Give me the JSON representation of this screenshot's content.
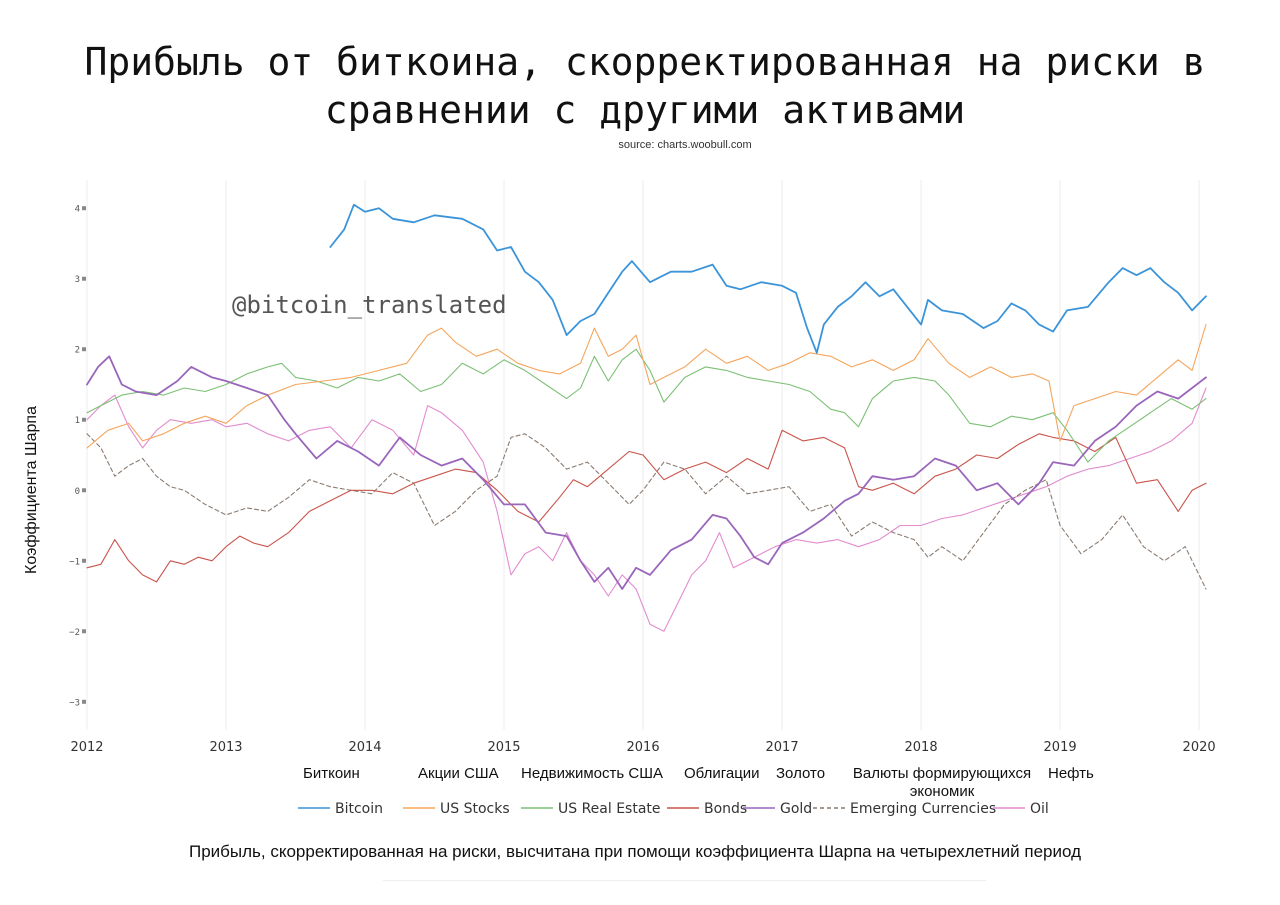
{
  "title": "Прибыль от биткоина, скорректированная на риски в сравнении с другими активами",
  "source": "source: charts.woobull.com",
  "watermark": "@bitcoin_translated",
  "footnote": "Прибыль, скорректированная на риски, высчитана при помощи коэффициента Шарпа на четырехлетний период",
  "russian_labels": [
    "Биткоин",
    "Акции США",
    "Недвижимость США",
    "Облигации",
    "Золото",
    "Валюты формирующихся экономик",
    "Нефть"
  ],
  "chart_data": {
    "type": "line",
    "title": "Прибыль от биткоина, скорректированная на риски в сравнении с другими активами",
    "xlabel": "",
    "ylabel": "Коэффициента Шарпа",
    "xlim": [
      2012,
      2020.1
    ],
    "ylim": [
      -3.4,
      4.4
    ],
    "x_ticks": [
      "2012",
      "2013",
      "2014",
      "2015",
      "2016",
      "2017",
      "2018",
      "2019",
      "2020"
    ],
    "y_ticks": [
      "4",
      "3",
      "2",
      "1",
      "0",
      "−1",
      "−2",
      "−3"
    ],
    "grid": "vertical",
    "legend": "bottom",
    "series": [
      {
        "name": "Bitcoin",
        "color": "#3b94d9",
        "dash": false,
        "width": 1.8,
        "x": [
          2013.75,
          2013.85,
          2013.92,
          2014.0,
          2014.1,
          2014.2,
          2014.35,
          2014.5,
          2014.7,
          2014.85,
          2014.95,
          2015.05,
          2015.15,
          2015.25,
          2015.35,
          2015.45,
          2015.55,
          2015.65,
          2015.75,
          2015.85,
          2015.92,
          2016.05,
          2016.2,
          2016.35,
          2016.5,
          2016.6,
          2016.7,
          2016.85,
          2017.0,
          2017.1,
          2017.18,
          2017.25,
          2017.3,
          2017.4,
          2017.5,
          2017.6,
          2017.7,
          2017.8,
          2017.9,
          2018.0,
          2018.05,
          2018.15,
          2018.3,
          2018.45,
          2018.55,
          2018.65,
          2018.75,
          2018.85,
          2018.95,
          2019.05,
          2019.2,
          2019.35,
          2019.45,
          2019.55,
          2019.65,
          2019.75,
          2019.85,
          2019.95,
          2020.05
        ],
        "y": [
          3.45,
          3.7,
          4.05,
          3.95,
          4.0,
          3.85,
          3.8,
          3.9,
          3.85,
          3.7,
          3.4,
          3.45,
          3.1,
          2.95,
          2.7,
          2.2,
          2.4,
          2.5,
          2.8,
          3.1,
          3.25,
          2.95,
          3.1,
          3.1,
          3.2,
          2.9,
          2.85,
          2.95,
          2.9,
          2.8,
          2.3,
          1.95,
          2.35,
          2.6,
          2.75,
          2.95,
          2.75,
          2.85,
          2.6,
          2.35,
          2.7,
          2.55,
          2.5,
          2.3,
          2.4,
          2.65,
          2.55,
          2.35,
          2.25,
          2.55,
          2.6,
          2.95,
          3.15,
          3.05,
          3.15,
          2.95,
          2.8,
          2.55,
          2.75
        ]
      },
      {
        "name": "US Stocks",
        "color": "#f5a55c",
        "dash": false,
        "width": 1.1,
        "x": [
          2012.0,
          2012.15,
          2012.3,
          2012.4,
          2012.55,
          2012.7,
          2012.85,
          2013.0,
          2013.15,
          2013.3,
          2013.5,
          2013.7,
          2013.9,
          2014.1,
          2014.3,
          2014.45,
          2014.55,
          2014.65,
          2014.8,
          2014.95,
          2015.1,
          2015.25,
          2015.4,
          2015.55,
          2015.65,
          2015.75,
          2015.85,
          2015.95,
          2016.05,
          2016.15,
          2016.3,
          2016.45,
          2016.6,
          2016.75,
          2016.9,
          2017.05,
          2017.2,
          2017.35,
          2017.5,
          2017.65,
          2017.8,
          2017.95,
          2018.05,
          2018.2,
          2018.35,
          2018.5,
          2018.65,
          2018.8,
          2018.92,
          2019.0,
          2019.1,
          2019.25,
          2019.4,
          2019.55,
          2019.7,
          2019.85,
          2019.95,
          2020.05
        ],
        "y": [
          0.6,
          0.85,
          0.95,
          0.7,
          0.8,
          0.95,
          1.05,
          0.95,
          1.2,
          1.35,
          1.5,
          1.55,
          1.6,
          1.7,
          1.8,
          2.2,
          2.3,
          2.1,
          1.9,
          2.0,
          1.8,
          1.7,
          1.65,
          1.8,
          2.3,
          1.9,
          2.0,
          2.2,
          1.5,
          1.6,
          1.75,
          2.0,
          1.8,
          1.9,
          1.7,
          1.8,
          1.95,
          1.9,
          1.75,
          1.85,
          1.7,
          1.85,
          2.15,
          1.8,
          1.6,
          1.75,
          1.6,
          1.65,
          1.55,
          0.7,
          1.2,
          1.3,
          1.4,
          1.35,
          1.6,
          1.85,
          1.7,
          2.35
        ]
      },
      {
        "name": "US Real Estate",
        "color": "#7cc075",
        "dash": false,
        "width": 1.1,
        "x": [
          2012.0,
          2012.1,
          2012.25,
          2012.4,
          2012.55,
          2012.7,
          2012.85,
          2013.0,
          2013.15,
          2013.3,
          2013.4,
          2013.5,
          2013.65,
          2013.8,
          2013.95,
          2014.1,
          2014.25,
          2014.4,
          2014.55,
          2014.7,
          2014.85,
          2015.0,
          2015.15,
          2015.3,
          2015.45,
          2015.55,
          2015.65,
          2015.75,
          2015.85,
          2015.95,
          2016.05,
          2016.15,
          2016.3,
          2016.45,
          2016.6,
          2016.75,
          2016.9,
          2017.05,
          2017.2,
          2017.35,
          2017.45,
          2017.55,
          2017.65,
          2017.8,
          2017.95,
          2018.1,
          2018.2,
          2018.35,
          2018.5,
          2018.65,
          2018.8,
          2018.95,
          2019.05,
          2019.2,
          2019.35,
          2019.5,
          2019.65,
          2019.8,
          2019.95,
          2020.05
        ],
        "y": [
          1.1,
          1.2,
          1.35,
          1.4,
          1.35,
          1.45,
          1.4,
          1.5,
          1.65,
          1.75,
          1.8,
          1.6,
          1.55,
          1.45,
          1.6,
          1.55,
          1.65,
          1.4,
          1.5,
          1.8,
          1.65,
          1.85,
          1.7,
          1.5,
          1.3,
          1.45,
          1.9,
          1.55,
          1.85,
          2.0,
          1.7,
          1.25,
          1.6,
          1.75,
          1.7,
          1.6,
          1.55,
          1.5,
          1.4,
          1.15,
          1.1,
          0.9,
          1.3,
          1.55,
          1.6,
          1.55,
          1.35,
          0.95,
          0.9,
          1.05,
          1.0,
          1.1,
          0.85,
          0.4,
          0.7,
          0.9,
          1.1,
          1.3,
          1.15,
          1.3
        ]
      },
      {
        "name": "Bonds",
        "color": "#c9544b",
        "dash": false,
        "width": 1.1,
        "x": [
          2012.0,
          2012.1,
          2012.2,
          2012.3,
          2012.4,
          2012.5,
          2012.6,
          2012.7,
          2012.8,
          2012.9,
          2013.0,
          2013.1,
          2013.2,
          2013.3,
          2013.45,
          2013.6,
          2013.75,
          2013.9,
          2014.05,
          2014.2,
          2014.35,
          2014.5,
          2014.65,
          2014.8,
          2014.95,
          2015.1,
          2015.25,
          2015.4,
          2015.5,
          2015.6,
          2015.75,
          2015.9,
          2016.0,
          2016.15,
          2016.3,
          2016.45,
          2016.6,
          2016.75,
          2016.9,
          2017.0,
          2017.15,
          2017.3,
          2017.45,
          2017.55,
          2017.65,
          2017.8,
          2017.95,
          2018.1,
          2018.25,
          2018.4,
          2018.55,
          2018.7,
          2018.85,
          2018.95,
          2019.1,
          2019.25,
          2019.4,
          2019.55,
          2019.7,
          2019.85,
          2019.95,
          2020.05
        ],
        "y": [
          -1.1,
          -1.05,
          -0.7,
          -1.0,
          -1.2,
          -1.3,
          -1.0,
          -1.05,
          -0.95,
          -1.0,
          -0.8,
          -0.65,
          -0.75,
          -0.8,
          -0.6,
          -0.3,
          -0.15,
          0.0,
          0.0,
          -0.05,
          0.1,
          0.2,
          0.3,
          0.25,
          0.0,
          -0.3,
          -0.45,
          -0.1,
          0.15,
          0.05,
          0.3,
          0.55,
          0.5,
          0.15,
          0.3,
          0.4,
          0.25,
          0.45,
          0.3,
          0.85,
          0.7,
          0.75,
          0.6,
          0.05,
          0.0,
          0.1,
          -0.05,
          0.2,
          0.3,
          0.5,
          0.45,
          0.65,
          0.8,
          0.75,
          0.7,
          0.55,
          0.75,
          0.1,
          0.15,
          -0.3,
          0.0,
          0.1
        ]
      },
      {
        "name": "Gold",
        "color": "#9966bb",
        "dash": false,
        "width": 1.8,
        "x": [
          2012.0,
          2012.08,
          2012.16,
          2012.25,
          2012.35,
          2012.5,
          2012.65,
          2012.75,
          2012.9,
          2013.0,
          2013.15,
          2013.3,
          2013.42,
          2013.5,
          2013.65,
          2013.8,
          2013.95,
          2014.1,
          2014.25,
          2014.4,
          2014.55,
          2014.7,
          2014.85,
          2015.0,
          2015.15,
          2015.3,
          2015.45,
          2015.55,
          2015.65,
          2015.75,
          2015.85,
          2015.95,
          2016.05,
          2016.2,
          2016.35,
          2016.5,
          2016.6,
          2016.7,
          2016.8,
          2016.9,
          2017.0,
          2017.15,
          2017.3,
          2017.45,
          2017.55,
          2017.65,
          2017.8,
          2017.95,
          2018.1,
          2018.25,
          2018.4,
          2018.55,
          2018.7,
          2018.85,
          2018.95,
          2019.1,
          2019.25,
          2019.4,
          2019.55,
          2019.7,
          2019.85,
          2019.95,
          2020.05
        ],
        "y": [
          1.5,
          1.75,
          1.9,
          1.5,
          1.4,
          1.35,
          1.55,
          1.75,
          1.6,
          1.55,
          1.45,
          1.35,
          1.0,
          0.8,
          0.45,
          0.7,
          0.55,
          0.35,
          0.75,
          0.5,
          0.35,
          0.45,
          0.15,
          -0.2,
          -0.2,
          -0.6,
          -0.65,
          -1.0,
          -1.3,
          -1.1,
          -1.4,
          -1.1,
          -1.2,
          -0.85,
          -0.7,
          -0.35,
          -0.4,
          -0.65,
          -0.95,
          -1.05,
          -0.75,
          -0.6,
          -0.4,
          -0.15,
          -0.05,
          0.2,
          0.15,
          0.2,
          0.45,
          0.35,
          0.0,
          0.1,
          -0.2,
          0.1,
          0.4,
          0.35,
          0.7,
          0.9,
          1.2,
          1.4,
          1.3,
          1.45,
          1.6
        ]
      },
      {
        "name": "Emerging Currencies",
        "color": "#8a7b70",
        "dash": true,
        "width": 1.1,
        "x": [
          2012.0,
          2012.1,
          2012.2,
          2012.3,
          2012.4,
          2012.5,
          2012.6,
          2012.7,
          2012.85,
          2013.0,
          2013.15,
          2013.3,
          2013.45,
          2013.6,
          2013.75,
          2013.9,
          2014.05,
          2014.2,
          2014.35,
          2014.5,
          2014.65,
          2014.8,
          2014.95,
          2015.05,
          2015.15,
          2015.3,
          2015.45,
          2015.6,
          2015.75,
          2015.9,
          2016.0,
          2016.15,
          2016.3,
          2016.45,
          2016.6,
          2016.75,
          2016.9,
          2017.05,
          2017.2,
          2017.35,
          2017.5,
          2017.65,
          2017.8,
          2017.95,
          2018.05,
          2018.15,
          2018.3,
          2018.45,
          2018.6,
          2018.75,
          2018.9,
          2019.0,
          2019.15,
          2019.3,
          2019.45,
          2019.6,
          2019.75,
          2019.9,
          2020.05
        ],
        "y": [
          0.8,
          0.6,
          0.2,
          0.35,
          0.45,
          0.2,
          0.05,
          0.0,
          -0.2,
          -0.35,
          -0.25,
          -0.3,
          -0.1,
          0.15,
          0.05,
          0.0,
          -0.05,
          0.25,
          0.1,
          -0.5,
          -0.3,
          0.0,
          0.2,
          0.75,
          0.8,
          0.6,
          0.3,
          0.4,
          0.1,
          -0.2,
          0.0,
          0.4,
          0.3,
          -0.05,
          0.2,
          -0.05,
          0.0,
          0.05,
          -0.3,
          -0.2,
          -0.65,
          -0.45,
          -0.6,
          -0.7,
          -0.95,
          -0.8,
          -1.0,
          -0.6,
          -0.2,
          0.0,
          0.15,
          -0.5,
          -0.9,
          -0.7,
          -0.35,
          -0.8,
          -1.0,
          -0.8,
          -1.4
        ]
      },
      {
        "name": "Oil",
        "color": "#e28ccf",
        "dash": false,
        "width": 1.1,
        "x": [
          2012.0,
          2012.1,
          2012.2,
          2012.3,
          2012.4,
          2012.5,
          2012.6,
          2012.75,
          2012.9,
          2013.0,
          2013.15,
          2013.3,
          2013.45,
          2013.6,
          2013.75,
          2013.9,
          2014.05,
          2014.2,
          2014.35,
          2014.45,
          2014.55,
          2014.7,
          2014.85,
          2014.95,
          2015.05,
          2015.15,
          2015.25,
          2015.35,
          2015.45,
          2015.55,
          2015.65,
          2015.75,
          2015.85,
          2015.95,
          2016.05,
          2016.15,
          2016.25,
          2016.35,
          2016.45,
          2016.55,
          2016.65,
          2016.75,
          2016.85,
          2016.95,
          2017.1,
          2017.25,
          2017.4,
          2017.55,
          2017.7,
          2017.85,
          2018.0,
          2018.15,
          2018.3,
          2018.45,
          2018.6,
          2018.75,
          2018.9,
          2019.05,
          2019.2,
          2019.35,
          2019.5,
          2019.65,
          2019.8,
          2019.95,
          2020.05
        ],
        "y": [
          1.0,
          1.2,
          1.35,
          0.9,
          0.6,
          0.85,
          1.0,
          0.95,
          1.0,
          0.9,
          0.95,
          0.8,
          0.7,
          0.85,
          0.9,
          0.6,
          1.0,
          0.85,
          0.5,
          1.2,
          1.1,
          0.85,
          0.4,
          -0.3,
          -1.2,
          -0.9,
          -0.8,
          -1.0,
          -0.6,
          -1.0,
          -1.2,
          -1.5,
          -1.2,
          -1.4,
          -1.9,
          -2.0,
          -1.6,
          -1.2,
          -1.0,
          -0.6,
          -1.1,
          -1.0,
          -0.9,
          -0.8,
          -0.7,
          -0.75,
          -0.7,
          -0.8,
          -0.7,
          -0.5,
          -0.5,
          -0.4,
          -0.35,
          -0.25,
          -0.15,
          -0.05,
          0.05,
          0.2,
          0.3,
          0.35,
          0.45,
          0.55,
          0.7,
          0.95,
          1.45
        ]
      }
    ]
  }
}
